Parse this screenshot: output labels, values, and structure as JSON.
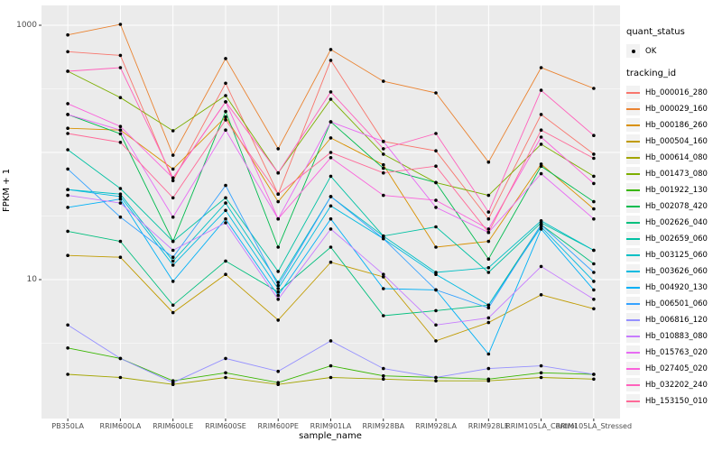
{
  "figure": {
    "y_axis_title": "FPKM + 1",
    "x_axis_title": "sample_name"
  },
  "legend": {
    "quant_status_title": "quant_status",
    "quant_status_items": [
      {
        "label": "OK",
        "marker": "black-point"
      }
    ],
    "tracking_id_title": "tracking_id"
  },
  "colors": {
    "panel_background": "#EBEBEB",
    "gridline": "#FFFFFF",
    "tick_text": "#4D4D4D",
    "point": "#000000",
    "legend_key_background": "#F2F2F2"
  },
  "chart_data": {
    "type": "line",
    "title": "",
    "xlabel": "sample_name",
    "ylabel": "FPKM + 1",
    "y_scale": "log10",
    "y_axis_breaks": [
      1000,
      10
    ],
    "y_tick_labels": [
      "1000",
      "10"
    ],
    "y_gridlines_major": [
      10,
      100,
      1000
    ],
    "y_gridlines_minor": [
      3.162,
      31.62,
      316.2
    ],
    "ylim_log": [
      0.81,
      1342
    ],
    "grid": true,
    "legend_position": "right",
    "point_marker": "black-dot",
    "categories": [
      "PB350LA",
      "RRIM600LA",
      "RRIM600LE",
      "RRIM600SE",
      "RRIM600PE",
      "RRIM901LA",
      "RRIM928BA",
      "RRIM928LA",
      "RRIM928LE",
      "RRIM105LA_Control",
      "RRIM105LA_Stressed"
    ],
    "series": [
      {
        "name": "Hb_000016_280",
        "color": "#F8766D",
        "values": [
          620,
          580,
          60,
          350,
          47,
          530,
          122,
          103,
          30,
          199,
          97
        ]
      },
      {
        "name": "Hb_000029_160",
        "color": "#EA8331",
        "values": [
          840,
          1016,
          95,
          547,
          107,
          644,
          363,
          294,
          84,
          464,
          319
        ]
      },
      {
        "name": "Hb_000186_260",
        "color": "#D89000",
        "values": [
          155,
          150,
          74,
          190,
          41,
          130,
          80,
          18,
          20,
          81,
          36
        ]
      },
      {
        "name": "Hb_000504_160",
        "color": "#C09B00",
        "values": [
          15.5,
          15,
          5.5,
          11,
          4.8,
          13.7,
          10.5,
          3.3,
          4.6,
          7.6,
          5.9
        ]
      },
      {
        "name": "Hb_000614_080",
        "color": "#A3A500",
        "values": [
          1.8,
          1.7,
          1.5,
          1.7,
          1.5,
          1.7,
          1.65,
          1.6,
          1.6,
          1.7,
          1.65
        ]
      },
      {
        "name": "Hb_001473_080",
        "color": "#7CAE00",
        "values": [
          435,
          270,
          148,
          280,
          69,
          262,
          97,
          58,
          46,
          116,
          65
        ]
      },
      {
        "name": "Hb_001922_130",
        "color": "#39B600",
        "values": [
          2.9,
          2.4,
          1.6,
          1.85,
          1.55,
          2.1,
          1.75,
          1.7,
          1.65,
          1.85,
          1.8
        ]
      },
      {
        "name": "Hb_002078_420",
        "color": "#00BB4E",
        "values": [
          199,
          140,
          20,
          210,
          18,
          174,
          75,
          58,
          14.5,
          78,
          41
        ]
      },
      {
        "name": "Hb_002626_040",
        "color": "#00BF7D",
        "values": [
          24,
          20,
          6.3,
          14,
          8,
          18,
          5.2,
          5.7,
          6.3,
          27,
          13.3
        ]
      },
      {
        "name": "Hb_002659_060",
        "color": "#00C1A3",
        "values": [
          105,
          52,
          20,
          44,
          11.6,
          65,
          22,
          26,
          11.4,
          28,
          17
        ]
      },
      {
        "name": "Hb_003125_060",
        "color": "#00BFC4",
        "values": [
          51,
          47,
          14,
          40,
          9.5,
          45,
          22,
          11.4,
          12.4,
          29,
          17
        ]
      },
      {
        "name": "Hb_003626_060",
        "color": "#00BAE0",
        "values": [
          51,
          45,
          13,
          35,
          8.5,
          38,
          21,
          11,
          6.3,
          26,
          9.7
        ]
      },
      {
        "name": "Hb_004920_130",
        "color": "#00B0F6",
        "values": [
          37,
          43,
          9.7,
          30,
          7.5,
          30,
          8.5,
          8.3,
          2.6,
          25,
          8.3
        ]
      },
      {
        "name": "Hb_006501_060",
        "color": "#35A2FF",
        "values": [
          74,
          31,
          15,
          55,
          9,
          45,
          21,
          8.3,
          6,
          27,
          11.4
        ]
      },
      {
        "name": "Hb_006816_120",
        "color": "#9590FF",
        "values": [
          4.4,
          2.4,
          1.55,
          2.4,
          1.9,
          3.3,
          2.0,
          1.7,
          2.0,
          2.1,
          1.8
        ]
      },
      {
        "name": "Hb_010883_080",
        "color": "#C77CFF",
        "values": [
          46,
          40,
          17,
          28,
          7,
          25,
          11,
          4.4,
          5.0,
          12.7,
          7.0
        ]
      },
      {
        "name": "Hb_015763_020",
        "color": "#E76BF3",
        "values": [
          199,
          150,
          31,
          150,
          30,
          174,
          122,
          37,
          23.5,
          68,
          30
        ]
      },
      {
        "name": "Hb_027405_020",
        "color": "#FA62DB",
        "values": [
          242,
          160,
          63,
          250,
          30,
          91,
          46,
          42,
          25,
          132,
          57
        ]
      },
      {
        "name": "Hb_032202_240",
        "color": "#FF62BC",
        "values": [
          435,
          464,
          63,
          250,
          69,
          299,
          107,
          141,
          34,
          308,
          136
        ]
      },
      {
        "name": "Hb_153150_010",
        "color": "#FF6A98",
        "values": [
          141,
          120,
          44,
          180,
          47,
          100,
          69,
          78,
          23.5,
          150,
          90
        ]
      }
    ]
  }
}
